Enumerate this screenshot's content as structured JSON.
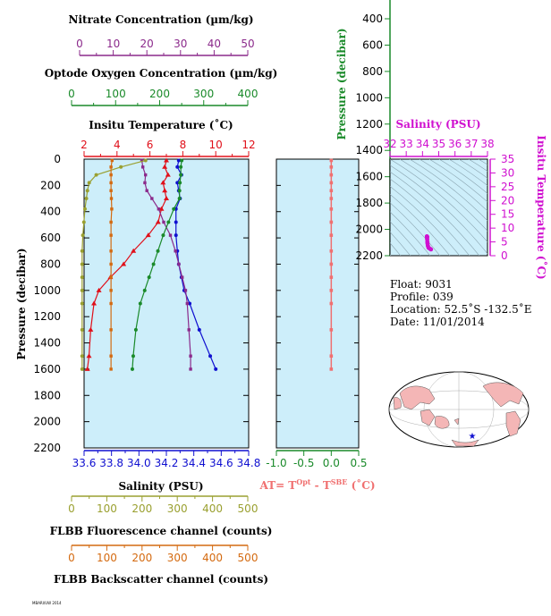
{
  "colors": {
    "nitrate": "#8b2a8b",
    "oxygen": "#1a8a2a",
    "temperature": "#e0101a",
    "salinity": "#1010d0",
    "fluorescence": "#9aa030",
    "backscatter": "#d46a10",
    "dtemp": "#f07070",
    "magenta": "#d010d0",
    "panel_bg": "#cdeefa",
    "green_axis": "#1a8a2a"
  },
  "axes": {
    "nitrate": {
      "label": "Nitrate Concentration (µm/kg)",
      "ticks": [
        "0",
        "10",
        "20",
        "30",
        "40",
        "50"
      ]
    },
    "oxygen": {
      "label": "Optode Oxygen Concentration (µm/kg)",
      "ticks": [
        "0",
        "100",
        "200",
        "300",
        "400"
      ]
    },
    "temperature": {
      "label": "Insitu Temperature (˚C)",
      "ticks": [
        "2",
        "4",
        "6",
        "8",
        "10",
        "12"
      ]
    },
    "salinity": {
      "label": "Salinity (PSU)",
      "ticks": [
        "33.6",
        "33.8",
        "34.0",
        "34.2",
        "34.4",
        "34.6",
        "34.8"
      ]
    },
    "fluorescence": {
      "label": "FLBB Fluorescence channel (counts)",
      "ticks": [
        "0",
        "100",
        "200",
        "300",
        "400",
        "500"
      ]
    },
    "backscatter": {
      "label": "FLBB Backscatter channel (counts)",
      "ticks": [
        "0",
        "100",
        "200",
        "300",
        "400",
        "500"
      ]
    },
    "pressure": {
      "label": "Pressure (decibar)",
      "ticks": [
        "0",
        "200",
        "400",
        "600",
        "800",
        "1000",
        "1200",
        "1400",
        "1600",
        "1800",
        "2000",
        "2200"
      ]
    },
    "dtemp": {
      "label_main": "AT= T",
      "label_sup1": "Opt",
      "label_mid": " - T",
      "label_sup2": "SBE",
      "label_end": " (˚C)",
      "ticks": [
        "-1.0",
        "-0.5",
        "0.0",
        "0.5"
      ]
    },
    "ts_salinity": {
      "label": "Salinity (PSU)",
      "ticks": [
        "32",
        "33",
        "34",
        "35",
        "36",
        "37",
        "38"
      ]
    },
    "ts_temperature": {
      "label": "Insitu Temperature (˚C)",
      "ticks": [
        "0",
        "5",
        "10",
        "15",
        "20",
        "25",
        "30",
        "35"
      ]
    },
    "ts_pressure": {
      "label": "Pressure (decibar)",
      "ticks": [
        "400",
        "600",
        "800",
        "1000",
        "1200",
        "1400",
        "1600",
        "1800",
        "2000",
        "2200"
      ]
    }
  },
  "info": {
    "float": "Float:  9031",
    "profile": "Profile:  039",
    "location": "Location:  52.5˚S  -132.5˚E",
    "date": "Date:  11/01/2014"
  },
  "footer_note": "MBARI/UW 2014",
  "chart_data": [
    {
      "type": "line",
      "panel": "main-profiles",
      "ylabel": "Pressure (decibar)",
      "ylim": [
        2200,
        0
      ],
      "series": [
        {
          "name": "Insitu Temperature",
          "axis": "temperature",
          "xlim": [
            2,
            12
          ],
          "x": [
            7.0,
            6.9,
            7.1,
            6.8,
            6.9,
            7.0,
            6.7,
            6.5,
            5.9,
            5.0,
            4.4,
            3.6,
            2.9,
            2.6,
            2.4,
            2.3,
            2.2
          ],
          "y": [
            10,
            60,
            120,
            180,
            240,
            300,
            380,
            480,
            580,
            700,
            800,
            900,
            1000,
            1100,
            1300,
            1500,
            1600
          ]
        },
        {
          "name": "Salinity",
          "axis": "salinity",
          "xlim": [
            33.6,
            34.8
          ],
          "x": [
            34.29,
            34.28,
            34.31,
            34.28,
            34.29,
            34.3,
            34.27,
            34.27,
            34.27,
            34.28,
            34.29,
            34.31,
            34.33,
            34.37,
            34.44,
            34.52,
            34.56
          ],
          "y": [
            10,
            60,
            120,
            180,
            240,
            300,
            380,
            480,
            580,
            700,
            800,
            900,
            1000,
            1100,
            1300,
            1500,
            1600
          ]
        },
        {
          "name": "Nitrate Concentration",
          "axis": "nitrate",
          "xlim": [
            0,
            50
          ],
          "x": [
            18.5,
            18.8,
            19.6,
            19.4,
            20.0,
            21.5,
            23.5,
            25.0,
            27.0,
            28.5,
            29.5,
            30.5,
            31.5,
            32.0,
            32.5,
            33.0,
            33.0
          ],
          "y": [
            10,
            60,
            120,
            180,
            240,
            300,
            380,
            480,
            580,
            700,
            800,
            900,
            1000,
            1100,
            1300,
            1500,
            1600
          ]
        },
        {
          "name": "Optode Oxygen Concentration",
          "axis": "oxygen",
          "xlim": [
            0,
            400
          ],
          "x": [
            250,
            248,
            248,
            246,
            245,
            245,
            232,
            220,
            208,
            196,
            186,
            176,
            166,
            156,
            146,
            140,
            138
          ],
          "y": [
            10,
            60,
            120,
            180,
            240,
            300,
            380,
            480,
            580,
            700,
            800,
            900,
            1000,
            1100,
            1300,
            1500,
            1600
          ]
        },
        {
          "name": "FLBB Fluorescence channel",
          "axis": "fluorescence",
          "xlim": [
            0,
            500
          ],
          "x": [
            210,
            140,
            70,
            50,
            45,
            42,
            38,
            35,
            32,
            30,
            30,
            30,
            30,
            30,
            30,
            30,
            30
          ],
          "y": [
            10,
            60,
            120,
            180,
            240,
            300,
            380,
            480,
            580,
            700,
            800,
            900,
            1000,
            1100,
            1300,
            1500,
            1600
          ]
        },
        {
          "name": "FLBB Backscatter channel",
          "axis": "backscatter",
          "xlim": [
            0,
            500
          ],
          "x": [
            115,
            112,
            112,
            112,
            112,
            113,
            114,
            112,
            112,
            112,
            112,
            112,
            112,
            112,
            112,
            112,
            112
          ],
          "y": [
            10,
            60,
            120,
            180,
            240,
            300,
            380,
            480,
            580,
            700,
            800,
            900,
            1000,
            1100,
            1300,
            1500,
            1600
          ]
        }
      ]
    },
    {
      "type": "line",
      "panel": "delta-temperature",
      "xlim": [
        -1.0,
        0.5
      ],
      "ylim": [
        2200,
        0
      ],
      "series": [
        {
          "name": "AT",
          "x": [
            0,
            0,
            0,
            0,
            0,
            0,
            0,
            0,
            0,
            0,
            0,
            0,
            0,
            0,
            0,
            0,
            0
          ],
          "y": [
            10,
            60,
            120,
            180,
            240,
            300,
            380,
            480,
            580,
            700,
            800,
            900,
            1000,
            1100,
            1300,
            1500,
            1600
          ]
        }
      ]
    },
    {
      "type": "scatter",
      "panel": "ts-diagram",
      "xlabel": "Salinity (PSU)",
      "ylabel": "Insitu Temperature (˚C)",
      "xlim": [
        32,
        38
      ],
      "ylim": [
        0,
        35
      ],
      "x": [
        34.27,
        34.28,
        34.29,
        34.28,
        34.29,
        34.3,
        34.31,
        34.33,
        34.37,
        34.44,
        34.52
      ],
      "y": [
        7.0,
        6.9,
        6.8,
        6.5,
        5.9,
        5.0,
        4.4,
        3.6,
        2.9,
        2.6,
        2.3
      ]
    }
  ]
}
